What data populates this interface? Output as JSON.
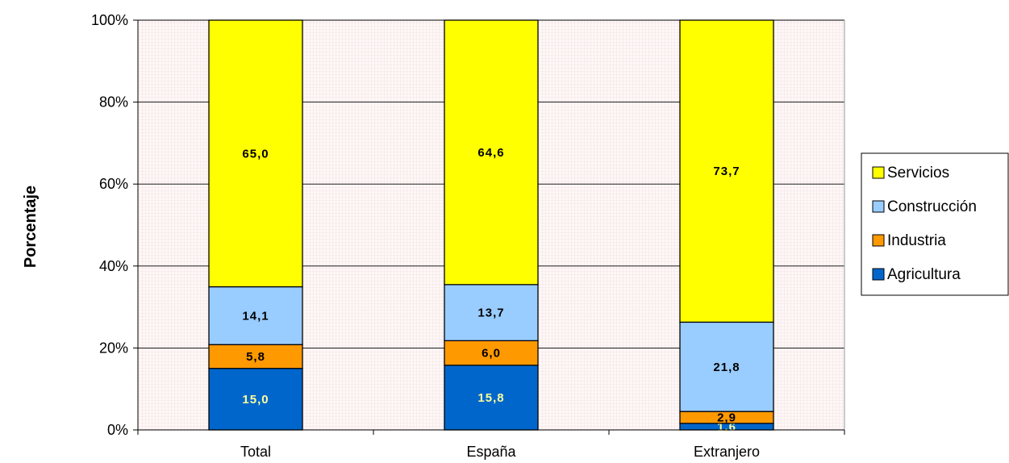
{
  "chart_data": {
    "type": "bar",
    "stacked": true,
    "percent_stacked": true,
    "categories": [
      "Total",
      "España",
      "Extranjero"
    ],
    "series": [
      {
        "name": "Agricultura",
        "color": "#0066CC",
        "label_color": "#FFFF99",
        "values": [
          15.0,
          15.8,
          1.6
        ],
        "labels": [
          "15,0",
          "15,8",
          "1,6"
        ]
      },
      {
        "name": "Industria",
        "color": "#FF9900",
        "label_color": "#000000",
        "values": [
          5.8,
          6.0,
          2.9
        ],
        "labels": [
          "5,8",
          "6,0",
          "2,9"
        ]
      },
      {
        "name": "Construcción",
        "color": "#99CCFF",
        "label_color": "#000000",
        "values": [
          14.1,
          13.7,
          21.8
        ],
        "labels": [
          "14,1",
          "13,7",
          "21,8"
        ]
      },
      {
        "name": "Servicios",
        "color": "#FFFF00",
        "label_color": "#000000",
        "values": [
          65.0,
          64.6,
          73.7
        ],
        "labels": [
          "65,0",
          "64,6",
          "73,7"
        ]
      }
    ],
    "ylabel": "Porcentaje",
    "xlabel": "",
    "ylim": [
      0,
      100
    ],
    "yticks": [
      "0%",
      "20%",
      "40%",
      "60%",
      "80%",
      "100%"
    ],
    "grid": true,
    "plot_background": "#FFF0F0",
    "legend_position": "right",
    "legend_order": [
      "Servicios",
      "Construcción",
      "Industria",
      "Agricultura"
    ]
  }
}
